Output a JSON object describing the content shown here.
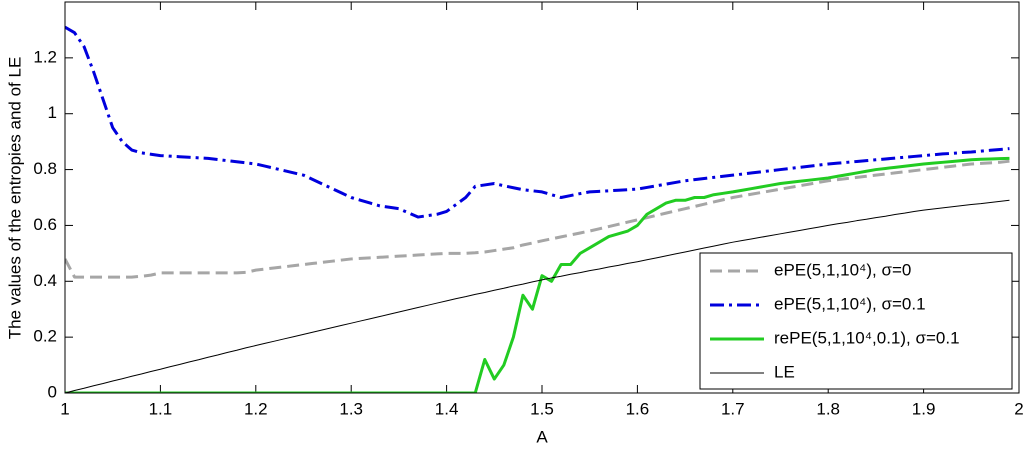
{
  "chart_data": {
    "type": "line",
    "xlabel": "A",
    "ylabel": "The values of the entropies and of LE",
    "xlim": [
      1,
      2
    ],
    "ylim": [
      0,
      1.4
    ],
    "xticks": [
      1,
      1.1,
      1.2,
      1.3,
      1.4,
      1.5,
      1.6,
      1.7,
      1.8,
      1.9,
      2
    ],
    "yticks": [
      0,
      0.2,
      0.4,
      0.6,
      0.8,
      1,
      1.2
    ],
    "grid": false,
    "legend": "lower right",
    "x": [
      1,
      1.01,
      1.02,
      1.03,
      1.04,
      1.05,
      1.06,
      1.07,
      1.08,
      1.09,
      1.1,
      1.11,
      1.12,
      1.13,
      1.14,
      1.15,
      1.16,
      1.17,
      1.18,
      1.19,
      1.2,
      1.21,
      1.22,
      1.23,
      1.24,
      1.25,
      1.26,
      1.27,
      1.28,
      1.29,
      1.3,
      1.31,
      1.32,
      1.33,
      1.34,
      1.35,
      1.36,
      1.37,
      1.38,
      1.39,
      1.4,
      1.41,
      1.42,
      1.43,
      1.44,
      1.45,
      1.46,
      1.47,
      1.48,
      1.49,
      1.5,
      1.51,
      1.52,
      1.53,
      1.54,
      1.55,
      1.56,
      1.57,
      1.58,
      1.59,
      1.6,
      1.61,
      1.62,
      1.63,
      1.64,
      1.65,
      1.66,
      1.67,
      1.68,
      1.69,
      1.7,
      1.71,
      1.72,
      1.73,
      1.74,
      1.75,
      1.76,
      1.77,
      1.78,
      1.79,
      1.8,
      1.81,
      1.82,
      1.83,
      1.84,
      1.85,
      1.86,
      1.87,
      1.88,
      1.89,
      1.9,
      1.91,
      1.92,
      1.93,
      1.94,
      1.95,
      1.96,
      1.97,
      1.98,
      1.99
    ],
    "series": [
      {
        "name": "ePE(5,1,10⁴), σ=0",
        "color": "#a6a6a6",
        "dash": "dashed",
        "width": 3,
        "values": [
          0.48,
          0.415,
          0.415,
          0.415,
          0.415,
          0.415,
          0.415,
          0.415,
          0.418,
          0.422,
          0.43,
          0.43,
          0.43,
          0.43,
          0.43,
          0.43,
          0.43,
          0.43,
          0.43,
          0.432,
          0.44,
          0.444,
          0.448,
          0.452,
          0.456,
          0.46,
          0.464,
          0.468,
          0.472,
          0.476,
          0.48,
          0.482,
          0.484,
          0.486,
          0.488,
          0.49,
          0.492,
          0.494,
          0.496,
          0.498,
          0.5,
          0.5,
          0.5,
          0.502,
          0.505,
          0.51,
          0.515,
          0.52,
          0.53,
          0.537,
          0.545,
          0.552,
          0.559,
          0.566,
          0.573,
          0.58,
          0.588,
          0.596,
          0.604,
          0.612,
          0.62,
          0.628,
          0.636,
          0.644,
          0.652,
          0.66,
          0.668,
          0.676,
          0.684,
          0.692,
          0.7,
          0.706,
          0.712,
          0.718,
          0.724,
          0.73,
          0.736,
          0.742,
          0.748,
          0.754,
          0.76,
          0.764,
          0.768,
          0.772,
          0.776,
          0.78,
          0.784,
          0.788,
          0.792,
          0.796,
          0.8,
          0.804,
          0.808,
          0.812,
          0.816,
          0.82,
          0.822,
          0.824,
          0.826,
          0.83
        ]
      },
      {
        "name": "ePE(5,1,10⁴), σ=0.1",
        "color": "#0000dd",
        "dash": "dashdot",
        "width": 3,
        "values": [
          1.31,
          1.29,
          1.24,
          1.15,
          1.05,
          0.95,
          0.9,
          0.87,
          0.86,
          0.855,
          0.85,
          0.848,
          0.846,
          0.844,
          0.842,
          0.84,
          0.836,
          0.832,
          0.828,
          0.824,
          0.82,
          0.812,
          0.804,
          0.796,
          0.788,
          0.78,
          0.764,
          0.748,
          0.732,
          0.716,
          0.7,
          0.69,
          0.68,
          0.67,
          0.665,
          0.66,
          0.645,
          0.63,
          0.635,
          0.64,
          0.65,
          0.675,
          0.7,
          0.74,
          0.745,
          0.75,
          0.742,
          0.735,
          0.728,
          0.724,
          0.72,
          0.71,
          0.7,
          0.707,
          0.714,
          0.72,
          0.722,
          0.724,
          0.726,
          0.728,
          0.73,
          0.736,
          0.742,
          0.748,
          0.754,
          0.76,
          0.764,
          0.768,
          0.772,
          0.776,
          0.78,
          0.784,
          0.788,
          0.792,
          0.796,
          0.8,
          0.804,
          0.808,
          0.812,
          0.816,
          0.82,
          0.823,
          0.826,
          0.829,
          0.832,
          0.835,
          0.838,
          0.841,
          0.844,
          0.847,
          0.85,
          0.853,
          0.856,
          0.858,
          0.861,
          0.863,
          0.866,
          0.869,
          0.872,
          0.875
        ]
      },
      {
        "name": "rePE(5,1,10⁴,0.1), σ=0.1",
        "color": "#22cc22",
        "dash": "solid",
        "width": 3,
        "values": [
          0,
          0,
          0,
          0,
          0,
          0,
          0,
          0,
          0,
          0,
          0,
          0,
          0,
          0,
          0,
          0,
          0,
          0,
          0,
          0,
          0,
          0,
          0,
          0,
          0,
          0,
          0,
          0,
          0,
          0,
          0,
          0,
          0,
          0,
          0,
          0,
          0,
          0,
          0,
          0,
          0,
          0,
          0,
          0,
          0.12,
          0.05,
          0.1,
          0.2,
          0.35,
          0.3,
          0.42,
          0.4,
          0.46,
          0.46,
          0.5,
          0.52,
          0.54,
          0.56,
          0.57,
          0.58,
          0.6,
          0.64,
          0.66,
          0.68,
          0.69,
          0.69,
          0.7,
          0.7,
          0.71,
          0.715,
          0.72,
          0.726,
          0.732,
          0.738,
          0.744,
          0.75,
          0.754,
          0.758,
          0.762,
          0.766,
          0.77,
          0.776,
          0.782,
          0.788,
          0.794,
          0.8,
          0.804,
          0.808,
          0.812,
          0.816,
          0.82,
          0.823,
          0.826,
          0.829,
          0.832,
          0.835,
          0.837,
          0.838,
          0.839,
          0.84
        ]
      },
      {
        "name": "LE",
        "color": "#000000",
        "dash": "solid",
        "width": 1,
        "values": [
          0,
          0.009,
          0.017,
          0.026,
          0.034,
          0.043,
          0.051,
          0.06,
          0.068,
          0.077,
          0.085,
          0.094,
          0.102,
          0.111,
          0.119,
          0.128,
          0.136,
          0.145,
          0.153,
          0.162,
          0.17,
          0.178,
          0.186,
          0.194,
          0.202,
          0.21,
          0.218,
          0.226,
          0.234,
          0.242,
          0.25,
          0.258,
          0.266,
          0.274,
          0.282,
          0.29,
          0.298,
          0.306,
          0.314,
          0.322,
          0.33,
          0.338,
          0.345,
          0.353,
          0.36,
          0.368,
          0.375,
          0.383,
          0.39,
          0.398,
          0.405,
          0.412,
          0.418,
          0.425,
          0.431,
          0.438,
          0.444,
          0.451,
          0.457,
          0.464,
          0.47,
          0.477,
          0.484,
          0.491,
          0.498,
          0.505,
          0.512,
          0.519,
          0.526,
          0.533,
          0.54,
          0.546,
          0.552,
          0.558,
          0.564,
          0.57,
          0.576,
          0.582,
          0.588,
          0.594,
          0.6,
          0.606,
          0.611,
          0.617,
          0.622,
          0.628,
          0.633,
          0.639,
          0.644,
          0.65,
          0.655,
          0.659,
          0.663,
          0.667,
          0.671,
          0.675,
          0.678,
          0.682,
          0.686,
          0.69
        ]
      }
    ]
  }
}
